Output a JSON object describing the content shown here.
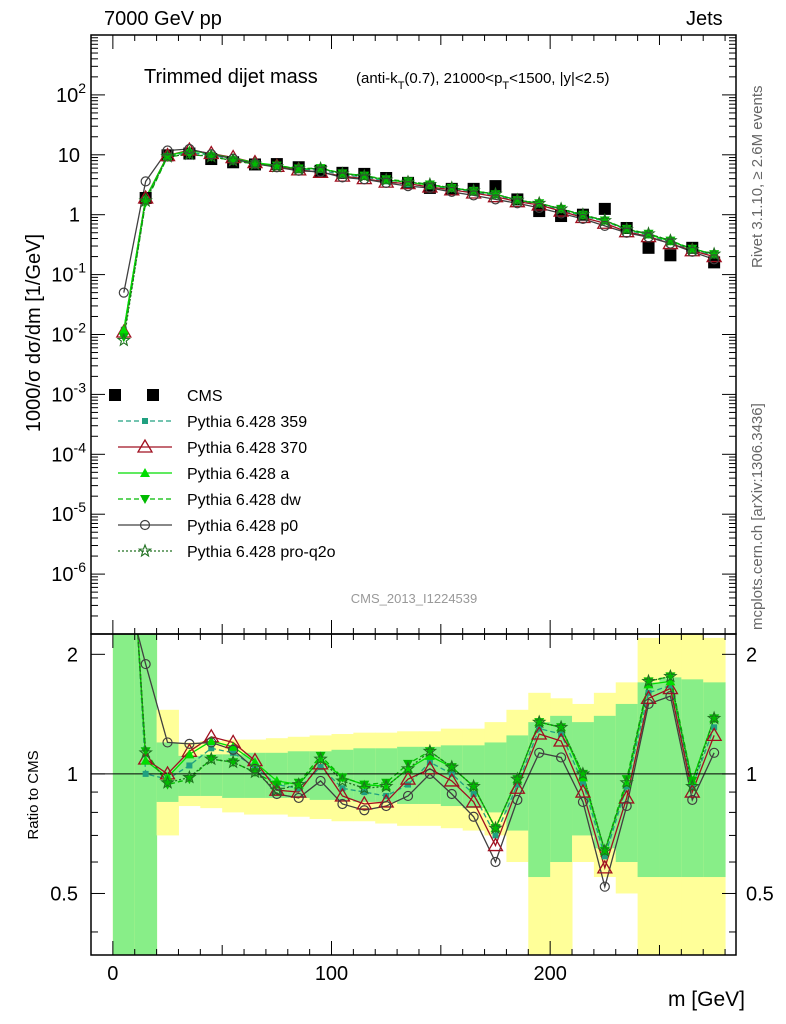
{
  "header": {
    "left": "7000 GeV pp",
    "right": "Jets"
  },
  "side_text": {
    "rivet": "Rivet 3.1.10, ≥ 2.6M events",
    "mcplots": "mcplots.cern.ch [arXiv:1306.3436]"
  },
  "analysis_id": "CMS_2013_I1224539",
  "chart_data": [
    {
      "type": "scatter",
      "panel": "main",
      "title": "Trimmed dijet mass",
      "title_cuts": "(anti-k_T(0.7), 21000<p_T<1500, |y|<2.5)",
      "xlabel": "m [GeV]",
      "ylabel": "1000/σ dσ/dm [1/GeV]",
      "xlim": [
        -10,
        285
      ],
      "ylim": [
        1e-07,
        1000
      ],
      "yscale": "log",
      "x": [
        5,
        15,
        25,
        35,
        45,
        55,
        65,
        75,
        85,
        95,
        105,
        115,
        125,
        135,
        145,
        155,
        165,
        175,
        185,
        195,
        205,
        215,
        225,
        235,
        245,
        255,
        265,
        275
      ],
      "series": [
        {
          "name": "CMS",
          "color": "#000000",
          "marker": "square",
          "values": [
            null,
            1.9,
            9.8,
            10.5,
            8.5,
            7.5,
            6.9,
            7.0,
            6.2,
            5.4,
            5.0,
            4.8,
            4.1,
            3.4,
            2.8,
            2.7,
            2.7,
            3.0,
            1.8,
            1.15,
            0.95,
            1.0,
            1.25,
            0.6,
            0.28,
            0.21,
            0.28,
            0.16
          ]
        },
        {
          "name": "Pythia 6.428 359",
          "color": "#20a080",
          "marker": "small-square",
          "dash": "dashed",
          "values": [
            0.012,
            1.8,
            9.5,
            11.0,
            9.9,
            8.4,
            7.2,
            6.6,
            5.7,
            5.6,
            4.6,
            4.3,
            3.6,
            3.2,
            3.0,
            2.7,
            2.4,
            2.1,
            1.7,
            1.5,
            1.2,
            0.95,
            0.78,
            0.56,
            0.45,
            0.35,
            0.26,
            0.21
          ]
        },
        {
          "name": "Pythia 6.428 370",
          "color": "#a01020",
          "marker": "open-triangle",
          "dash": "solid",
          "values": [
            0.011,
            1.9,
            9.7,
            12.0,
            10.5,
            9.0,
            7.4,
            6.4,
            5.6,
            5.1,
            4.4,
            4.0,
            3.5,
            3.3,
            2.9,
            2.6,
            2.3,
            2.0,
            1.65,
            1.45,
            1.15,
            0.9,
            0.72,
            0.52,
            0.43,
            0.33,
            0.25,
            0.2
          ]
        },
        {
          "name": "Pythia 6.428 a",
          "color": "#00dd00",
          "marker": "triangle",
          "dash": "solid",
          "values": [
            0.012,
            1.9,
            9.6,
            11.8,
            10.3,
            8.8,
            7.4,
            6.7,
            5.8,
            5.9,
            4.9,
            4.5,
            3.8,
            3.5,
            3.1,
            2.8,
            2.5,
            2.2,
            1.75,
            1.55,
            1.25,
            0.98,
            0.8,
            0.57,
            0.47,
            0.36,
            0.27,
            0.22
          ]
        },
        {
          "name": "Pythia 6.428 dw",
          "color": "#00bb00",
          "marker": "down-triangle",
          "dash": "dashed",
          "values": [
            0.009,
            1.6,
            9.2,
            10.2,
            9.3,
            8.0,
            7.0,
            6.6,
            5.9,
            6.0,
            4.9,
            4.5,
            3.9,
            3.6,
            3.2,
            2.8,
            2.5,
            2.2,
            1.75,
            1.55,
            1.25,
            1.0,
            0.8,
            0.58,
            0.48,
            0.37,
            0.27,
            0.22
          ]
        },
        {
          "name": "Pythia 6.428 p0",
          "color": "#404040",
          "marker": "open-circle",
          "dash": "solid",
          "values": [
            0.05,
            3.6,
            11.8,
            12.5,
            10.2,
            8.6,
            7.1,
            6.2,
            5.4,
            5.2,
            4.2,
            3.9,
            3.4,
            3.0,
            2.8,
            2.4,
            2.1,
            1.8,
            1.55,
            1.3,
            1.05,
            0.85,
            0.65,
            0.5,
            0.42,
            0.33,
            0.24,
            0.18
          ]
        },
        {
          "name": "Pythia 6.428 pro-q2o",
          "color": "#207020",
          "marker": "open-star",
          "dash": "dotted",
          "values": [
            0.008,
            1.7,
            9.3,
            10.3,
            9.3,
            8.0,
            7.0,
            6.4,
            5.8,
            5.9,
            4.8,
            4.4,
            3.8,
            3.5,
            3.2,
            2.8,
            2.5,
            2.2,
            1.75,
            1.55,
            1.25,
            1.0,
            0.8,
            0.57,
            0.48,
            0.37,
            0.26,
            0.22
          ]
        }
      ],
      "legend_position": "left-middle"
    },
    {
      "type": "line",
      "panel": "ratio",
      "xlabel": "m [GeV]",
      "ylabel": "Ratio to CMS",
      "xlim": [
        -10,
        285
      ],
      "ylim": [
        0.35,
        2.25
      ],
      "yscale": "log",
      "bands": {
        "bin_edges": [
          0,
          10,
          20,
          30,
          40,
          50,
          60,
          70,
          80,
          90,
          100,
          110,
          120,
          130,
          140,
          150,
          160,
          170,
          180,
          190,
          200,
          210,
          220,
          230,
          240,
          250,
          260,
          270,
          280
        ],
        "yellow_lo": [
          0.35,
          0.35,
          0.7,
          0.83,
          0.82,
          0.8,
          0.79,
          0.79,
          0.78,
          0.77,
          0.76,
          0.76,
          0.75,
          0.74,
          0.74,
          0.73,
          0.72,
          0.7,
          0.6,
          0.35,
          0.35,
          0.6,
          0.55,
          0.5,
          0.35,
          0.35,
          0.35,
          0.35
        ],
        "yellow_hi": [
          2.25,
          2.25,
          1.45,
          1.2,
          1.21,
          1.22,
          1.22,
          1.23,
          1.24,
          1.25,
          1.26,
          1.27,
          1.27,
          1.28,
          1.28,
          1.3,
          1.3,
          1.35,
          1.45,
          1.6,
          1.55,
          1.5,
          1.6,
          1.7,
          2.2,
          2.25,
          2.25,
          2.2
        ],
        "green_lo": [
          0.35,
          0.35,
          0.85,
          0.88,
          0.88,
          0.87,
          0.87,
          0.87,
          0.87,
          0.86,
          0.86,
          0.85,
          0.85,
          0.84,
          0.84,
          0.83,
          0.82,
          0.8,
          0.72,
          0.55,
          0.6,
          0.7,
          0.65,
          0.6,
          0.55,
          0.55,
          0.55,
          0.55
        ],
        "green_hi": [
          2.25,
          2.25,
          1.2,
          1.11,
          1.12,
          1.12,
          1.13,
          1.13,
          1.14,
          1.14,
          1.15,
          1.16,
          1.16,
          1.17,
          1.17,
          1.18,
          1.18,
          1.2,
          1.25,
          1.35,
          1.4,
          1.35,
          1.4,
          1.5,
          1.7,
          1.75,
          1.73,
          1.7
        ],
        "green_color": "#88ee88",
        "yellow_color": "#ffff99"
      },
      "series": [
        {
          "name": "Pythia 6.428 359",
          "values": [
            null,
            1.0,
            0.97,
            1.05,
            1.16,
            1.13,
            1.04,
            0.94,
            0.92,
            1.04,
            0.92,
            0.9,
            0.88,
            0.94,
            1.07,
            1.0,
            0.89,
            0.7,
            0.94,
            1.3,
            1.26,
            0.95,
            0.62,
            0.93,
            1.6,
            1.67,
            0.93,
            1.31
          ]
        },
        {
          "name": "Pythia 6.428 370",
          "values": [
            null,
            1.09,
            1.0,
            1.14,
            1.24,
            1.2,
            1.08,
            0.91,
            0.9,
            1.06,
            0.88,
            0.84,
            0.85,
            0.97,
            1.03,
            0.96,
            0.85,
            0.66,
            0.92,
            1.26,
            1.21,
            0.9,
            0.58,
            0.87,
            1.55,
            1.64,
            0.9,
            1.25
          ]
        },
        {
          "name": "Pythia 6.428 a",
          "values": [
            null,
            1.08,
            0.98,
            1.12,
            1.21,
            1.17,
            1.07,
            0.96,
            0.94,
            1.09,
            0.98,
            0.94,
            0.93,
            1.03,
            1.11,
            1.04,
            0.93,
            0.73,
            0.97,
            1.35,
            1.31,
            0.98,
            0.64,
            0.95,
            1.68,
            1.71,
            0.96,
            1.38
          ]
        },
        {
          "name": "Pythia 6.428 dw",
          "values": [
            null,
            1.14,
            0.94,
            0.97,
            1.09,
            1.07,
            1.01,
            0.94,
            0.95,
            1.11,
            0.98,
            0.94,
            0.95,
            1.06,
            1.14,
            1.04,
            0.93,
            0.73,
            0.97,
            1.35,
            1.31,
            1.0,
            0.64,
            0.97,
            1.71,
            1.76,
            0.96,
            1.38
          ]
        },
        {
          "name": "Pythia 6.428 p0",
          "values": [
            null,
            1.89,
            1.2,
            1.19,
            1.2,
            1.15,
            1.03,
            0.89,
            0.87,
            0.96,
            0.84,
            0.81,
            0.83,
            0.88,
            1.0,
            0.89,
            0.78,
            0.6,
            0.86,
            1.13,
            1.1,
            0.85,
            0.52,
            0.83,
            1.5,
            1.57,
            0.86,
            1.13
          ]
        },
        {
          "name": "Pythia 6.428 pro-q2o",
          "values": [
            null,
            1.13,
            0.95,
            0.98,
            1.09,
            1.07,
            1.01,
            0.91,
            0.94,
            1.09,
            0.96,
            0.92,
            0.93,
            1.03,
            1.14,
            1.04,
            0.93,
            0.73,
            0.97,
            1.35,
            1.31,
            1.0,
            0.64,
            0.95,
            1.71,
            1.76,
            0.93,
            1.38
          ]
        }
      ]
    }
  ]
}
